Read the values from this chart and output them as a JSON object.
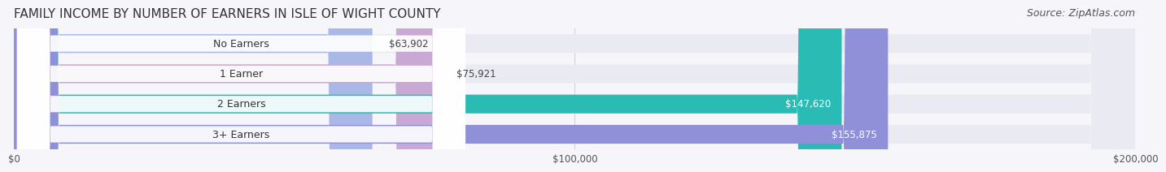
{
  "title": "FAMILY INCOME BY NUMBER OF EARNERS IN ISLE OF WIGHT COUNTY",
  "source": "Source: ZipAtlas.com",
  "categories": [
    "No Earners",
    "1 Earner",
    "2 Earners",
    "3+ Earners"
  ],
  "values": [
    63902,
    75921,
    147620,
    155875
  ],
  "bar_colors": [
    "#aab8e8",
    "#c9a8d4",
    "#2abcb4",
    "#9090d8"
  ],
  "bar_bg_color": "#e8e8f0",
  "label_colors": [
    "#555555",
    "#555555",
    "#ffffff",
    "#ffffff"
  ],
  "value_labels": [
    "$63,902",
    "$75,921",
    "$147,620",
    "$155,875"
  ],
  "xlim": [
    0,
    200000
  ],
  "xticks": [
    0,
    100000,
    200000
  ],
  "xtick_labels": [
    "$0",
    "$100,000",
    "$200,000"
  ],
  "title_fontsize": 11,
  "source_fontsize": 9,
  "background_color": "#f5f5fa",
  "bar_background_color": "#eaeaf2"
}
